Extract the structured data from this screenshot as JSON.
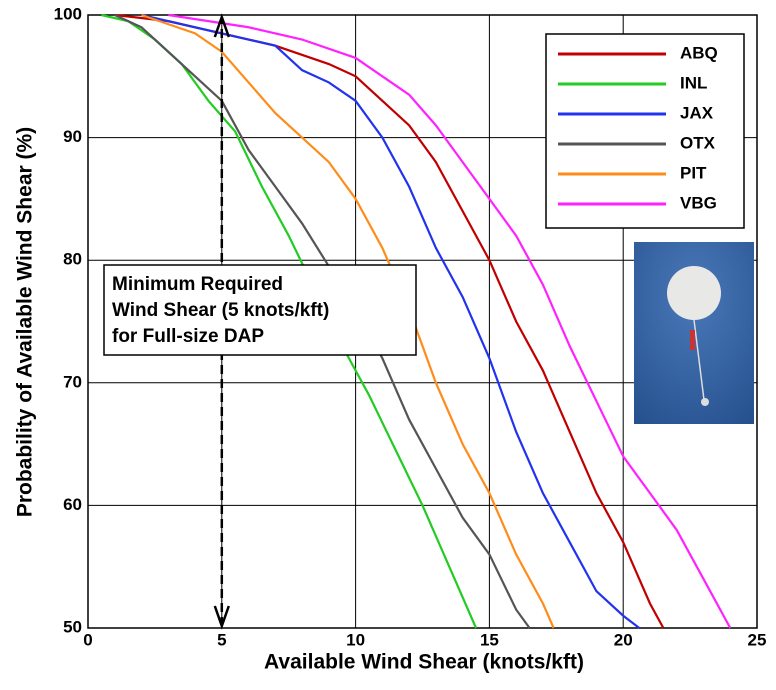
{
  "chart_data": {
    "type": "line",
    "xlabel": "Available Wind Shear (knots/kft)",
    "ylabel": "Probability of Available Wind Shear (%)",
    "xlim": [
      0,
      25
    ],
    "xticks": [
      0,
      5,
      10,
      15,
      20,
      25
    ],
    "ylim": [
      50,
      100
    ],
    "yticks": [
      50,
      60,
      70,
      80,
      90,
      100
    ],
    "grid": true,
    "legend": "upper right",
    "annotation": {
      "lines": [
        "Minimum Required",
        "Wind Shear (5 knots/kft)",
        "for Full-size DAP"
      ],
      "x": 5
    },
    "series": [
      {
        "name": "ABQ",
        "color": "#c00000",
        "x": [
          1,
          3,
          5,
          7,
          9,
          10,
          11,
          12,
          13,
          14,
          15,
          16,
          17,
          18,
          19,
          20,
          21,
          21.5
        ],
        "values": [
          100,
          99.5,
          98.5,
          97.5,
          96,
          95,
          93,
          91,
          88,
          84,
          80,
          75,
          71,
          66,
          61,
          57,
          52,
          50
        ]
      },
      {
        "name": "INL",
        "color": "#22cc22",
        "x": [
          0.5,
          1.5,
          2.5,
          3.5,
          4.5,
          5.5,
          6.5,
          7.5,
          8.5,
          9.5,
          10.5,
          11.5,
          12.5,
          13.5,
          14,
          14.5
        ],
        "values": [
          100,
          99.5,
          98,
          96,
          93,
          90.5,
          86,
          82,
          77.5,
          73,
          69,
          64.5,
          60,
          55,
          52.5,
          50
        ]
      },
      {
        "name": "JAX",
        "color": "#2233ee",
        "x": [
          2,
          4,
          6,
          7,
          8,
          9,
          10,
          11,
          12,
          13,
          14,
          15,
          16,
          17,
          18,
          19,
          20,
          20.6
        ],
        "values": [
          100,
          99,
          98,
          97.5,
          95.5,
          94.5,
          93,
          90,
          86,
          81,
          77,
          72,
          66,
          61,
          57,
          53,
          51,
          50
        ]
      },
      {
        "name": "OTX",
        "color": "#555555",
        "x": [
          1,
          2,
          3,
          4,
          5,
          6,
          7,
          8,
          9,
          10,
          11,
          12,
          13,
          14,
          15,
          16,
          16.5
        ],
        "values": [
          100,
          99,
          97,
          95,
          93,
          89,
          86,
          83,
          79.5,
          76,
          72,
          67,
          63,
          59,
          56,
          51.5,
          50
        ]
      },
      {
        "name": "PIT",
        "color": "#ff8c1a",
        "x": [
          2,
          4,
          5,
          6,
          7,
          8,
          9,
          10,
          11,
          12,
          13,
          14,
          15,
          16,
          17,
          17.4
        ],
        "values": [
          100,
          98.5,
          97,
          94.5,
          92,
          90,
          88,
          85,
          81,
          76,
          70,
          65,
          61,
          56,
          52,
          50
        ]
      },
      {
        "name": "VBG",
        "color": "#ff22ff",
        "x": [
          3,
          6,
          8,
          10,
          11,
          12,
          13,
          14,
          15,
          16,
          17,
          18,
          19,
          20,
          21,
          22,
          23,
          24
        ],
        "values": [
          100,
          99,
          98,
          96.5,
          95,
          93.5,
          91,
          88,
          85,
          82,
          78,
          73,
          68.5,
          64,
          61,
          58,
          54,
          50
        ]
      }
    ]
  }
}
